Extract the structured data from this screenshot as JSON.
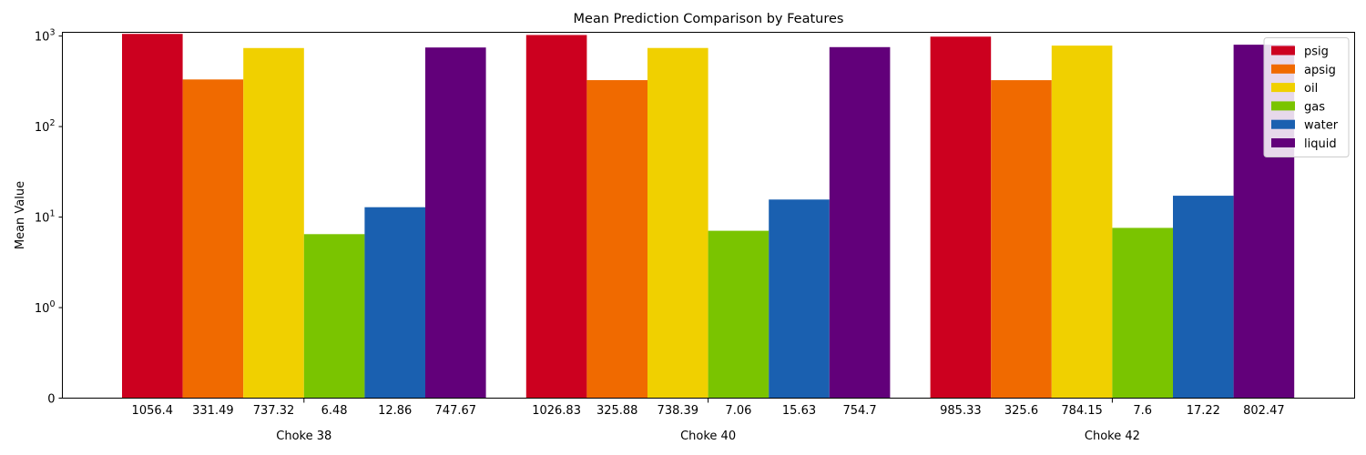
{
  "chart_data": {
    "type": "bar",
    "title": "Mean Prediction Comparison by Features",
    "xlabel": "",
    "ylabel": "Mean Value",
    "yscale": "symlog",
    "ylim": [
      0,
      1100
    ],
    "yticks": [
      {
        "value": 0,
        "label": "0"
      },
      {
        "value": 1,
        "label": "10",
        "exp": "0"
      },
      {
        "value": 10,
        "label": "10",
        "exp": "1"
      },
      {
        "value": 100,
        "label": "10",
        "exp": "2"
      },
      {
        "value": 1000,
        "label": "10",
        "exp": "3"
      }
    ],
    "categories": [
      "Choke 38",
      "Choke 40",
      "Choke 42"
    ],
    "legend_position": "top-right",
    "grid": false,
    "series": [
      {
        "name": "psig",
        "color": "#cc001f",
        "values": [
          1056.4,
          1026.83,
          985.33
        ]
      },
      {
        "name": "apsig",
        "color": "#f06a00",
        "values": [
          331.49,
          325.88,
          325.6
        ]
      },
      {
        "name": "oil",
        "color": "#f0d000",
        "values": [
          737.32,
          738.39,
          784.15
        ]
      },
      {
        "name": "gas",
        "color": "#7ac400",
        "values": [
          6.48,
          7.06,
          7.6
        ]
      },
      {
        "name": "water",
        "color": "#1a60b0",
        "values": [
          12.86,
          15.63,
          17.22
        ]
      },
      {
        "name": "liquid",
        "color": "#62007a",
        "values": [
          747.67,
          754.7,
          802.47
        ]
      }
    ],
    "value_labels": [
      [
        "1056.4",
        "331.49",
        "737.32",
        "6.48",
        "12.86",
        "747.67"
      ],
      [
        "1026.83",
        "325.88",
        "738.39",
        "7.06",
        "15.63",
        "754.7"
      ],
      [
        "985.33",
        "325.6",
        "784.15",
        "7.6",
        "17.22",
        "802.47"
      ]
    ]
  }
}
